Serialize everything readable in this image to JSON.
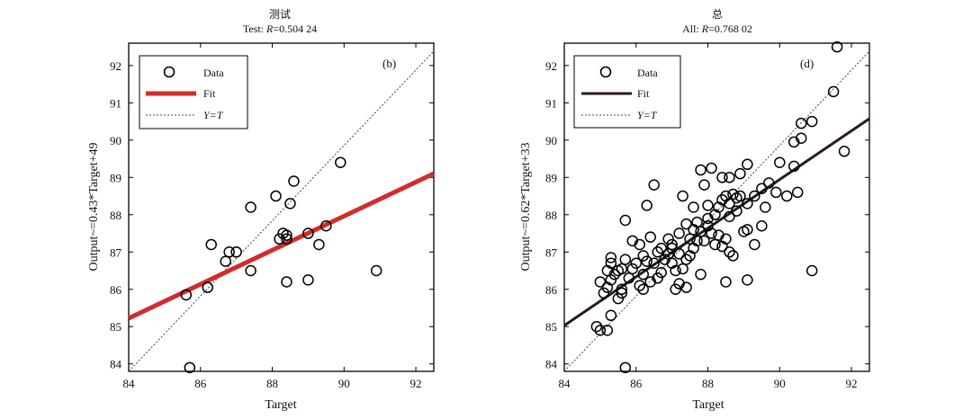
{
  "chart_data": [
    {
      "type": "scatter",
      "panel_label": "(b)",
      "title": "测试",
      "subtitle_prefix": "Test: ",
      "r_symbol": "R",
      "r_value": "=0.504 24",
      "xlabel": "Target",
      "ylabel": "Output~=0.43*Target+49",
      "xlim": [
        84,
        92.5
      ],
      "ylim": [
        83.8,
        92.6
      ],
      "xticks": [
        84,
        86,
        88,
        90,
        92
      ],
      "yticks": [
        84,
        85,
        86,
        87,
        88,
        89,
        90,
        91,
        92
      ],
      "grid": false,
      "legend_position": "top-left",
      "legend": [
        "Data",
        "Fit",
        "Y=T"
      ],
      "fit": {
        "slope": 0.43,
        "intercept": 49,
        "color": "#d42b2b",
        "width": 5
      },
      "series": [
        {
          "name": "Data",
          "points": [
            [
              85.7,
              83.9
            ],
            [
              85.6,
              85.85
            ],
            [
              86.2,
              86.05
            ],
            [
              86.3,
              87.2
            ],
            [
              86.7,
              86.75
            ],
            [
              86.8,
              87.0
            ],
            [
              87.0,
              87.0
            ],
            [
              87.4,
              86.5
            ],
            [
              87.4,
              88.2
            ],
            [
              88.1,
              88.5
            ],
            [
              88.2,
              87.35
            ],
            [
              88.3,
              87.5
            ],
            [
              88.4,
              87.35
            ],
            [
              88.4,
              87.45
            ],
            [
              88.4,
              86.2
            ],
            [
              88.5,
              88.3
            ],
            [
              88.6,
              88.9
            ],
            [
              89.0,
              87.5
            ],
            [
              89.0,
              86.25
            ],
            [
              89.3,
              87.2
            ],
            [
              89.5,
              87.7
            ],
            [
              89.9,
              89.4
            ],
            [
              90.9,
              86.5
            ]
          ]
        }
      ]
    },
    {
      "type": "scatter",
      "panel_label": "(d)",
      "title": "总",
      "subtitle_prefix": "All: ",
      "r_symbol": "R",
      "r_value": "=0.768 02",
      "xlabel": "Target",
      "ylabel": "Output~=0.62*Target+33",
      "xlim": [
        84,
        92.5
      ],
      "ylim": [
        83.8,
        92.6
      ],
      "xticks": [
        84,
        86,
        88,
        90,
        92
      ],
      "yticks": [
        84,
        85,
        86,
        87,
        88,
        89,
        90,
        91,
        92
      ],
      "grid": false,
      "legend_position": "top-left",
      "legend": [
        "Data",
        "Fit",
        "Y=T"
      ],
      "fit": {
        "slope": 0.62,
        "intercept": 33,
        "color": "#2a1a1a",
        "width": 3
      },
      "series": [
        {
          "name": "Data",
          "points": [
            [
              91.6,
              92.5
            ],
            [
              91.5,
              91.3
            ],
            [
              90.9,
              90.5
            ],
            [
              90.6,
              90.45
            ],
            [
              90.4,
              89.95
            ],
            [
              90.6,
              90.05
            ],
            [
              91.8,
              89.7
            ],
            [
              90.4,
              89.3
            ],
            [
              90.0,
              89.4
            ],
            [
              90.2,
              88.5
            ],
            [
              90.5,
              88.6
            ],
            [
              90.9,
              86.5
            ],
            [
              89.1,
              89.35
            ],
            [
              88.6,
              89.0
            ],
            [
              88.4,
              89.0
            ],
            [
              88.1,
              89.25
            ],
            [
              87.8,
              89.2
            ],
            [
              85.7,
              83.9
            ],
            [
              85.0,
              84.9
            ],
            [
              85.2,
              84.9
            ],
            [
              85.3,
              85.3
            ],
            [
              85.1,
              85.9
            ],
            [
              85.0,
              86.2
            ],
            [
              85.2,
              86.05
            ],
            [
              85.3,
              86.25
            ],
            [
              85.4,
              86.4
            ],
            [
              85.2,
              86.5
            ],
            [
              85.3,
              86.7
            ],
            [
              85.5,
              86.5
            ],
            [
              85.6,
              86.55
            ],
            [
              85.7,
              86.8
            ],
            [
              85.8,
              86.3
            ],
            [
              85.6,
              86.0
            ],
            [
              85.5,
              85.75
            ],
            [
              85.9,
              86.55
            ],
            [
              86.0,
              86.7
            ],
            [
              86.1,
              87.2
            ],
            [
              85.9,
              87.3
            ],
            [
              86.2,
              86.9
            ],
            [
              86.3,
              86.75
            ],
            [
              86.2,
              86.4
            ],
            [
              86.2,
              86.0
            ],
            [
              86.4,
              86.2
            ],
            [
              86.5,
              86.7
            ],
            [
              86.6,
              87.0
            ],
            [
              86.7,
              87.1
            ],
            [
              86.7,
              86.45
            ],
            [
              86.8,
              86.8
            ],
            [
              86.9,
              86.95
            ],
            [
              87.0,
              87.1
            ],
            [
              87.0,
              86.7
            ],
            [
              87.1,
              86.5
            ],
            [
              87.1,
              86.0
            ],
            [
              87.2,
              86.15
            ],
            [
              87.4,
              86.05
            ],
            [
              87.3,
              86.55
            ],
            [
              87.4,
              86.8
            ],
            [
              87.5,
              86.9
            ],
            [
              87.6,
              87.1
            ],
            [
              87.5,
              87.35
            ],
            [
              87.7,
              87.3
            ],
            [
              87.6,
              87.6
            ],
            [
              87.4,
              87.75
            ],
            [
              87.7,
              87.8
            ],
            [
              87.8,
              87.55
            ],
            [
              87.9,
              87.3
            ],
            [
              88.0,
              87.7
            ],
            [
              88.1,
              87.5
            ],
            [
              88.0,
              87.9
            ],
            [
              88.2,
              88.0
            ],
            [
              88.3,
              88.2
            ],
            [
              88.4,
              88.4
            ],
            [
              88.5,
              88.5
            ],
            [
              88.6,
              88.3
            ],
            [
              88.6,
              87.95
            ],
            [
              88.8,
              88.1
            ],
            [
              88.7,
              88.55
            ],
            [
              88.8,
              88.45
            ],
            [
              88.9,
              88.5
            ],
            [
              89.1,
              88.3
            ],
            [
              89.1,
              87.6
            ],
            [
              89.0,
              87.55
            ],
            [
              88.5,
              87.35
            ],
            [
              88.3,
              87.45
            ],
            [
              88.4,
              87.15
            ],
            [
              88.5,
              86.2
            ],
            [
              89.1,
              86.25
            ],
            [
              89.3,
              87.2
            ],
            [
              89.5,
              87.7
            ],
            [
              89.6,
              88.2
            ],
            [
              89.5,
              88.7
            ],
            [
              89.7,
              88.85
            ],
            [
              89.9,
              88.6
            ],
            [
              88.6,
              87.0
            ],
            [
              88.7,
              86.9
            ],
            [
              87.2,
              87.5
            ],
            [
              86.5,
              88.8
            ],
            [
              86.3,
              88.25
            ],
            [
              86.1,
              86.1
            ],
            [
              85.7,
              87.85
            ],
            [
              85.3,
              86.85
            ],
            [
              84.9,
              85.0
            ],
            [
              87.3,
              88.5
            ],
            [
              87.9,
              88.8
            ],
            [
              87.0,
              87.2
            ],
            [
              86.9,
              87.35
            ],
            [
              87.6,
              88.2
            ],
            [
              88.9,
              89.1
            ],
            [
              88.2,
              87.2
            ],
            [
              87.8,
              86.4
            ],
            [
              86.6,
              86.3
            ],
            [
              86.4,
              87.4
            ],
            [
              85.6,
              85.9
            ],
            [
              87.2,
              86.95
            ],
            [
              88.0,
              88.25
            ],
            [
              89.3,
              88.5
            ]
          ]
        }
      ]
    }
  ]
}
